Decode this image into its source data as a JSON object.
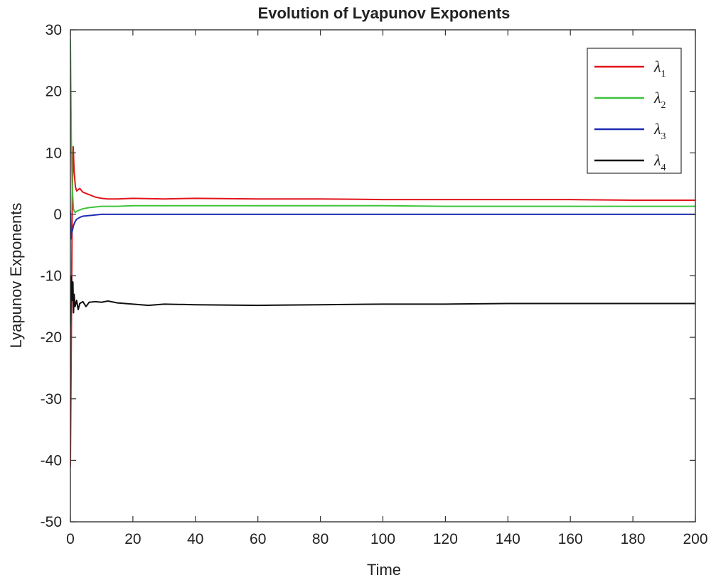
{
  "chart_data": {
    "type": "line",
    "title": "Evolution of Lyapunov Exponents",
    "xlabel": "Time",
    "ylabel": "Lyapunov Exponents",
    "xlim": [
      0,
      200
    ],
    "ylim": [
      -50,
      30
    ],
    "xticks": [
      "0",
      "20",
      "40",
      "60",
      "80",
      "100",
      "120",
      "140",
      "160",
      "180",
      "200"
    ],
    "yticks": [
      "30",
      "20",
      "10",
      "0",
      "-10",
      "-20",
      "-30",
      "-40",
      "-50"
    ],
    "grid": false,
    "legend_position": "top-right",
    "series": [
      {
        "name": "λ1",
        "symbol": "λ",
        "subscript": "1",
        "color": "#e2141b",
        "x": [
          0,
          0.3,
          0.6,
          0.9,
          1.2,
          1.6,
          2,
          3,
          4,
          5,
          6,
          8,
          10,
          12,
          15,
          20,
          30,
          40,
          60,
          80,
          100,
          120,
          140,
          160,
          180,
          200
        ],
        "y": [
          -41,
          -20,
          3,
          11,
          7,
          4.5,
          3.8,
          4.2,
          3.6,
          3.4,
          3.2,
          2.8,
          2.6,
          2.5,
          2.5,
          2.6,
          2.5,
          2.6,
          2.5,
          2.5,
          2.4,
          2.4,
          2.4,
          2.4,
          2.3,
          2.3
        ]
      },
      {
        "name": "λ2",
        "symbol": "λ",
        "subscript": "2",
        "color": "#3ec43c",
        "x": [
          0,
          0.3,
          0.6,
          1,
          1.5,
          2,
          3,
          4,
          5,
          6,
          8,
          10,
          15,
          20,
          40,
          60,
          80,
          100,
          120,
          140,
          160,
          180,
          200
        ],
        "y": [
          28.5,
          12,
          4,
          0.8,
          0.3,
          0.5,
          0.7,
          0.9,
          1.0,
          1.1,
          1.2,
          1.3,
          1.3,
          1.4,
          1.4,
          1.4,
          1.4,
          1.4,
          1.3,
          1.3,
          1.3,
          1.3,
          1.3
        ]
      },
      {
        "name": "λ3",
        "symbol": "λ",
        "subscript": "3",
        "color": "#1f2bb4",
        "x": [
          0,
          0.2,
          0.4,
          0.7,
          1,
          1.5,
          2,
          3,
          4,
          6,
          8,
          10,
          20,
          40,
          60,
          80,
          100,
          120,
          140,
          160,
          180,
          200
        ],
        "y": [
          0.5,
          -4,
          -3,
          -2.5,
          -1.8,
          -1.2,
          -0.8,
          -0.5,
          -0.3,
          -0.2,
          -0.1,
          0,
          0,
          0,
          0,
          0,
          0,
          0,
          0,
          0,
          0,
          0
        ]
      },
      {
        "name": "λ4",
        "symbol": "λ",
        "subscript": "4",
        "color": "#111111",
        "x": [
          0,
          0.3,
          0.6,
          0.8,
          1,
          1.2,
          1.5,
          2,
          2.5,
          3,
          4,
          5,
          6,
          8,
          10,
          12,
          15,
          20,
          25,
          30,
          40,
          60,
          80,
          100,
          120,
          140,
          160,
          180,
          200
        ],
        "y": [
          -18,
          -10,
          -14,
          -11,
          -16,
          -13,
          -15,
          -14,
          -15.5,
          -14.5,
          -14.2,
          -15,
          -14.3,
          -14.2,
          -14.3,
          -14.1,
          -14.4,
          -14.6,
          -14.8,
          -14.6,
          -14.7,
          -14.8,
          -14.7,
          -14.6,
          -14.6,
          -14.5,
          -14.5,
          -14.5,
          -14.5
        ]
      }
    ]
  }
}
